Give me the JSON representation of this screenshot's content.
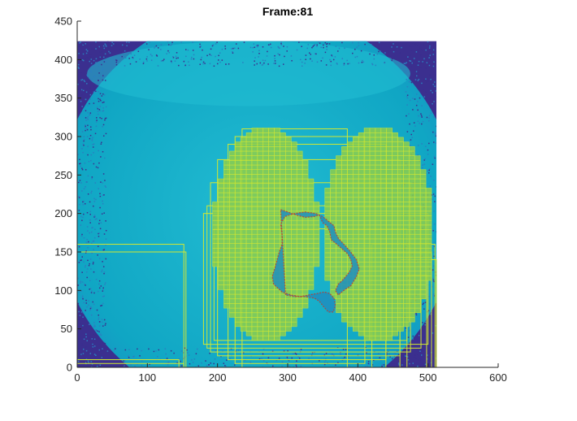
{
  "chart_data": {
    "type": "heatmap",
    "title": "Frame:81",
    "xlabel": "",
    "ylabel": "",
    "xlim": [
      0,
      600
    ],
    "ylim": [
      0,
      450
    ],
    "xticks": [
      0,
      100,
      200,
      300,
      400,
      500,
      600
    ],
    "yticks": [
      0,
      50,
      100,
      150,
      200,
      250,
      300,
      350,
      400,
      450
    ],
    "image_extent": {
      "x": [
        0,
        512
      ],
      "y": [
        0,
        424
      ]
    },
    "grid": false,
    "colors": {
      "background_low": "#3b2f8f",
      "field": "#10a6c4",
      "field_light": "#22bcd2",
      "noise": "#2a7fc0",
      "overlay_box": "#d4e830",
      "region_fill": "#8fcf4a",
      "contour": "#c0392b",
      "contour_fill": "#1f8fbf"
    },
    "overlay_boxes": [
      {
        "x0": 0,
        "y0": 0,
        "x1": 152,
        "y1": 160
      },
      {
        "x0": 0,
        "y0": 0,
        "x1": 155,
        "y1": 150
      },
      {
        "x0": 0,
        "y0": 0,
        "x1": 145,
        "y1": 10
      },
      {
        "x0": 0,
        "y0": 0,
        "x1": 152,
        "y1": 5
      },
      {
        "x0": 235,
        "y0": 0,
        "x1": 385,
        "y1": 310
      },
      {
        "x0": 225,
        "y0": 5,
        "x1": 410,
        "y1": 300
      },
      {
        "x0": 215,
        "y0": 10,
        "x1": 440,
        "y1": 290
      },
      {
        "x0": 200,
        "y0": 15,
        "x1": 460,
        "y1": 270
      },
      {
        "x0": 190,
        "y0": 20,
        "x1": 475,
        "y1": 240
      },
      {
        "x0": 185,
        "y0": 25,
        "x1": 490,
        "y1": 210
      },
      {
        "x0": 180,
        "y0": 30,
        "x1": 500,
        "y1": 200
      },
      {
        "x0": 195,
        "y0": 35,
        "x1": 470,
        "y1": 180
      },
      {
        "x0": 420,
        "y0": 0,
        "x1": 510,
        "y1": 160
      },
      {
        "x0": 440,
        "y0": 0,
        "x1": 505,
        "y1": 150
      },
      {
        "x0": 460,
        "y0": 0,
        "x1": 512,
        "y1": 140
      },
      {
        "x0": 470,
        "y0": 0,
        "x1": 498,
        "y1": 120
      }
    ],
    "contour_outline": [
      [
        290,
        205
      ],
      [
        300,
        202
      ],
      [
        312,
        198
      ],
      [
        325,
        195
      ],
      [
        338,
        196
      ],
      [
        345,
        198
      ],
      [
        350,
        188
      ],
      [
        356,
        184
      ],
      [
        360,
        176
      ],
      [
        362,
        166
      ],
      [
        370,
        160
      ],
      [
        385,
        148
      ],
      [
        390,
        140
      ],
      [
        392,
        132
      ],
      [
        388,
        124
      ],
      [
        380,
        115
      ],
      [
        372,
        108
      ],
      [
        368,
        100
      ],
      [
        372,
        94
      ],
      [
        380,
        100
      ],
      [
        390,
        106
      ],
      [
        398,
        118
      ],
      [
        402,
        128
      ],
      [
        398,
        140
      ],
      [
        388,
        152
      ],
      [
        380,
        160
      ],
      [
        372,
        168
      ],
      [
        368,
        176
      ],
      [
        366,
        184
      ],
      [
        358,
        190
      ],
      [
        350,
        196
      ],
      [
        340,
        200
      ],
      [
        325,
        202
      ],
      [
        310,
        200
      ],
      [
        296,
        196
      ],
      [
        290,
        186
      ],
      [
        292,
        172
      ],
      [
        292,
        160
      ],
      [
        288,
        150
      ],
      [
        285,
        140
      ],
      [
        282,
        130
      ],
      [
        278,
        118
      ],
      [
        280,
        108
      ],
      [
        292,
        98
      ],
      [
        305,
        94
      ],
      [
        318,
        92
      ],
      [
        330,
        94
      ],
      [
        342,
        96
      ],
      [
        352,
        98
      ],
      [
        360,
        96
      ],
      [
        366,
        90
      ],
      [
        368,
        80
      ],
      [
        365,
        72
      ],
      [
        358,
        72
      ],
      [
        352,
        78
      ],
      [
        345,
        86
      ],
      [
        338,
        90
      ],
      [
        325,
        92
      ],
      [
        310,
        92
      ],
      [
        297,
        94
      ]
    ]
  }
}
